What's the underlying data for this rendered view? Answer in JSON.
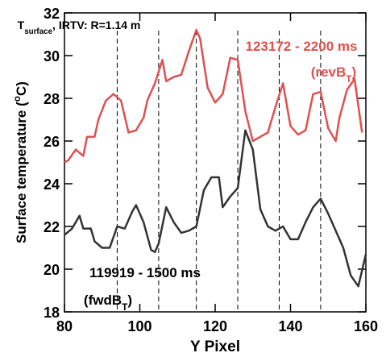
{
  "chart_data": {
    "type": "line",
    "xlabel": "Y Pixel",
    "ylabel": [
      {
        "t": "Surface temperature ("
      },
      {
        "t": "o",
        "sup": true
      },
      {
        "t": "C)"
      }
    ],
    "xlim": [
      80,
      160
    ],
    "xticks": [
      80,
      100,
      120,
      140,
      160
    ],
    "ylim": [
      18,
      32
    ],
    "yticks": [
      18,
      20,
      22,
      24,
      26,
      28,
      30,
      32
    ],
    "vlines": [
      94,
      105,
      115,
      126,
      137,
      148
    ],
    "annotations": [
      {
        "parts": [
          {
            "t": "T"
          },
          {
            "t": "surface",
            "sub": true
          },
          {
            "t": ", IRTV: R=1.14 m"
          }
        ],
        "color": "#000000"
      },
      {
        "parts": [
          {
            "t": "123172 - 2200 ms"
          }
        ],
        "color": "#e05050"
      },
      {
        "parts": [
          {
            "t": "(revB"
          },
          {
            "t": "T",
            "sub": true
          },
          {
            "t": ")"
          }
        ],
        "color": "#e05050"
      },
      {
        "parts": [
          {
            "t": "119919 - 1500 ms"
          }
        ],
        "color": "#000000"
      },
      {
        "parts": [
          {
            "t": "(fwdB"
          },
          {
            "t": "T",
            "sub": true
          },
          {
            "t": ")"
          }
        ],
        "color": "#000000"
      }
    ],
    "series": [
      {
        "color": "#e05050",
        "x": [
          80,
          81,
          83,
          85,
          86,
          88,
          89,
          91,
          93,
          95,
          97,
          99,
          101,
          102,
          104,
          106,
          107,
          109,
          111,
          113,
          115,
          116,
          118,
          120,
          122,
          124,
          126,
          128,
          130,
          132,
          134,
          136,
          138,
          140,
          142,
          144,
          146,
          148,
          150,
          152,
          153,
          155,
          157,
          159
        ],
        "values": [
          25.0,
          25.1,
          25.6,
          25.3,
          26.2,
          26.2,
          27.0,
          27.9,
          28.2,
          27.9,
          26.4,
          26.5,
          27.1,
          27.9,
          28.7,
          29.8,
          28.8,
          29.0,
          29.1,
          30.2,
          31.2,
          30.8,
          28.5,
          27.8,
          28.2,
          29.9,
          29.8,
          27.4,
          26.0,
          26.2,
          26.4,
          27.6,
          28.7,
          26.7,
          26.3,
          26.5,
          28.2,
          28.3,
          26.6,
          26.0,
          27.1,
          28.4,
          28.9,
          26.4
        ]
      },
      {
        "color": "#333333",
        "x": [
          80,
          82,
          84,
          85,
          87,
          88,
          90,
          92,
          94,
          96,
          98,
          99,
          101,
          103,
          104,
          105,
          107,
          109,
          111,
          113,
          115,
          117,
          119,
          121,
          122,
          124,
          126,
          128,
          130,
          132,
          134,
          136,
          138,
          140,
          142,
          144,
          146,
          148,
          150,
          152,
          154,
          156,
          158,
          160
        ],
        "values": [
          21.6,
          21.9,
          22.5,
          21.9,
          21.9,
          21.3,
          21.0,
          21.0,
          22.0,
          21.9,
          22.7,
          23.0,
          22.2,
          20.9,
          20.8,
          21.2,
          22.9,
          22.2,
          21.7,
          21.8,
          22.0,
          23.7,
          24.3,
          24.3,
          22.9,
          23.4,
          23.8,
          26.5,
          25.6,
          22.8,
          22.0,
          21.8,
          22.0,
          21.4,
          21.4,
          22.2,
          22.9,
          23.3,
          22.6,
          21.8,
          21.0,
          19.7,
          19.2,
          20.7
        ]
      }
    ]
  }
}
